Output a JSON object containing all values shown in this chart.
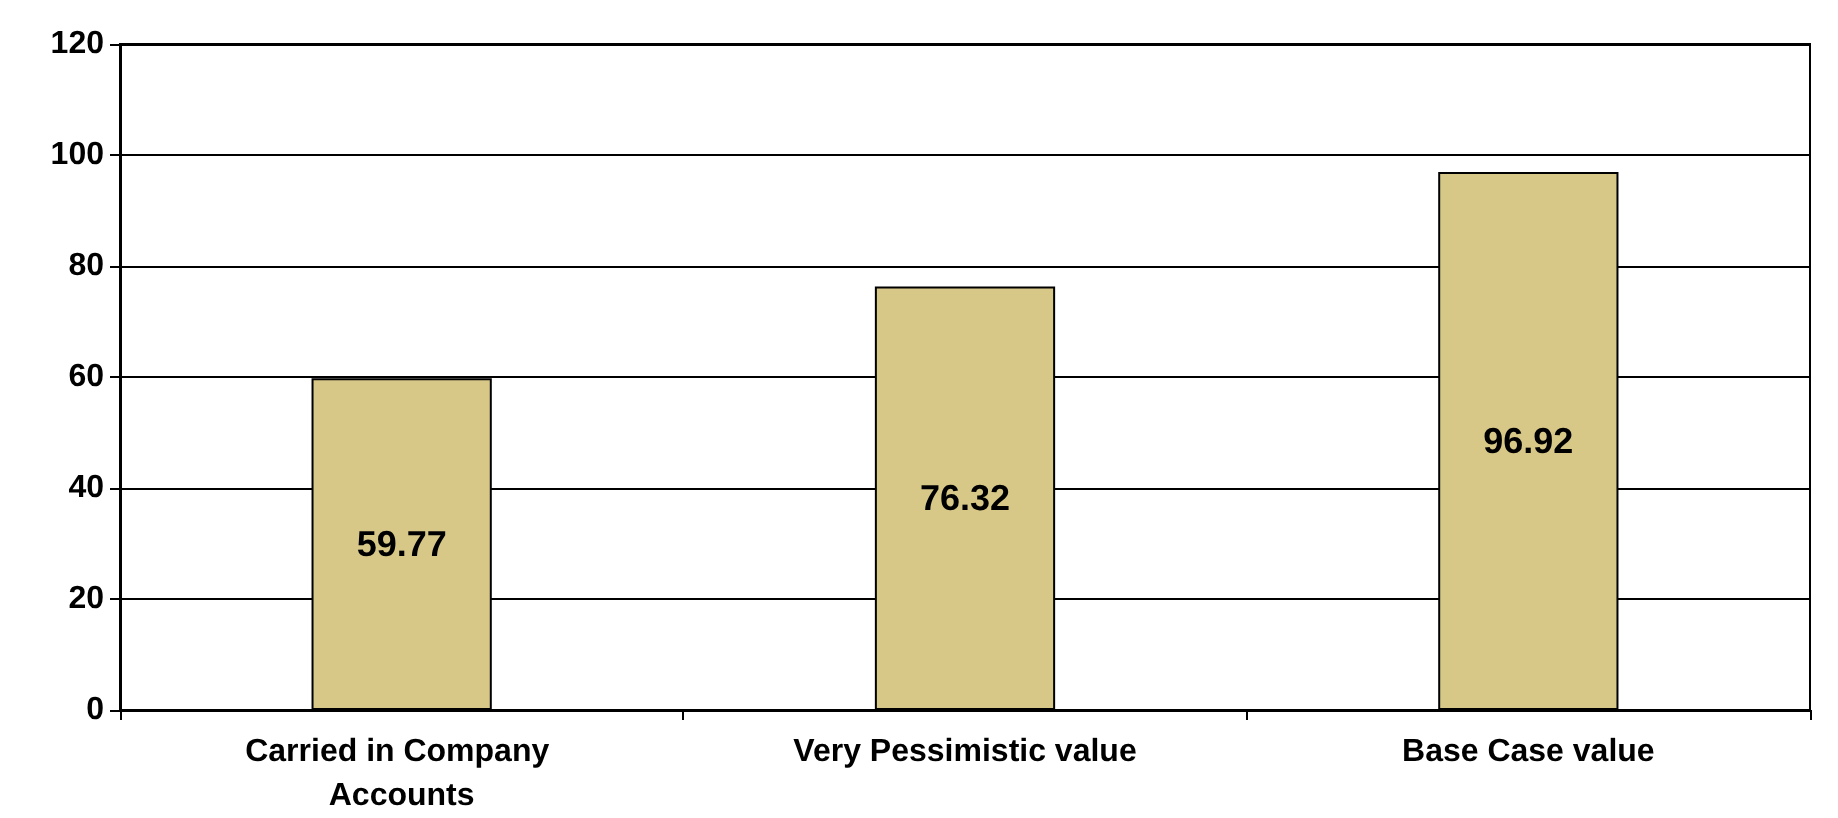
{
  "chart_data": {
    "type": "bar",
    "categories": [
      "Carried in Company Accounts",
      "Very Pessimistic value",
      "Base Case value"
    ],
    "values": [
      59.77,
      76.32,
      96.92
    ],
    "color": "#d8c888",
    "ylim": [
      0,
      120
    ],
    "yticks": [
      0,
      20,
      40,
      60,
      80,
      100,
      120
    ],
    "grid": "y",
    "data_labels": true
  }
}
